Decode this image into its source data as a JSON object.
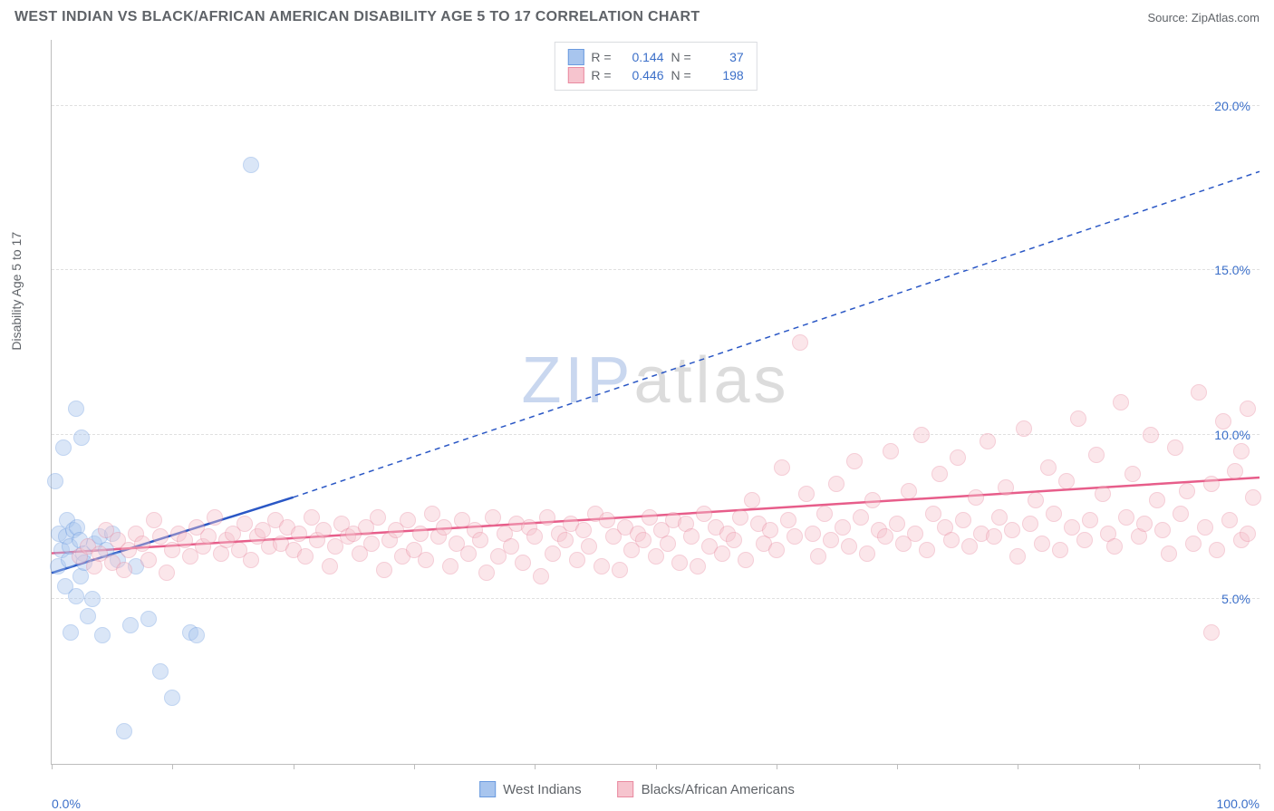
{
  "title": "WEST INDIAN VS BLACK/AFRICAN AMERICAN DISABILITY AGE 5 TO 17 CORRELATION CHART",
  "source_label": "Source: ",
  "source_name": "ZipAtlas.com",
  "ylabel": "Disability Age 5 to 17",
  "watermark_a": "ZIP",
  "watermark_b": "atlas",
  "chart": {
    "type": "scatter",
    "background_color": "#ffffff",
    "grid_color": "#e0e0e0",
    "axis_color": "#bdbdbd",
    "label_color": "#3b6fc9",
    "text_color": "#5f6368",
    "xlim": [
      0,
      100
    ],
    "ylim": [
      0,
      22
    ],
    "xticks": [
      0,
      10,
      20,
      30,
      40,
      50,
      60,
      70,
      80,
      90,
      100
    ],
    "xticklabels_shown": {
      "0": "0.0%",
      "100": "100.0%"
    },
    "yticks": [
      5,
      10,
      15,
      20
    ],
    "yticklabels": {
      "5": "5.0%",
      "10": "10.0%",
      "15": "15.0%",
      "20": "20.0%"
    },
    "marker_radius": 9,
    "marker_opacity": 0.42,
    "series": [
      {
        "name": "West Indians",
        "fill": "#a8c5ee",
        "stroke": "#6a9adf",
        "reg_color": "#2a57c5",
        "reg_solid": {
          "x1": 0,
          "y1": 5.8,
          "x2": 20,
          "y2": 8.1
        },
        "reg_dashed": {
          "x1": 20,
          "y1": 8.1,
          "x2": 100,
          "y2": 18.0
        },
        "R": "0.144",
        "N": "37",
        "points": [
          [
            0.3,
            8.6
          ],
          [
            0.5,
            6.0
          ],
          [
            0.6,
            7.0
          ],
          [
            0.8,
            6.5
          ],
          [
            1.0,
            9.6
          ],
          [
            1.1,
            5.4
          ],
          [
            1.2,
            6.9
          ],
          [
            1.3,
            7.4
          ],
          [
            1.4,
            6.2
          ],
          [
            1.5,
            6.6
          ],
          [
            1.6,
            4.0
          ],
          [
            1.8,
            7.1
          ],
          [
            2.0,
            10.8
          ],
          [
            2.0,
            5.1
          ],
          [
            2.1,
            7.2
          ],
          [
            2.3,
            6.8
          ],
          [
            2.4,
            5.7
          ],
          [
            2.5,
            9.9
          ],
          [
            2.6,
            6.4
          ],
          [
            2.7,
            6.1
          ],
          [
            3.0,
            4.5
          ],
          [
            3.4,
            5.0
          ],
          [
            3.5,
            6.7
          ],
          [
            4.0,
            6.9
          ],
          [
            4.2,
            3.9
          ],
          [
            4.5,
            6.5
          ],
          [
            5.0,
            7.0
          ],
          [
            5.5,
            6.2
          ],
          [
            6.0,
            1.0
          ],
          [
            6.5,
            4.2
          ],
          [
            7.0,
            6.0
          ],
          [
            8.0,
            4.4
          ],
          [
            9.0,
            2.8
          ],
          [
            10.0,
            2.0
          ],
          [
            11.5,
            4.0
          ],
          [
            12.0,
            3.9
          ],
          [
            16.5,
            18.2
          ]
        ]
      },
      {
        "name": "Blacks/African Americans",
        "fill": "#f6c4ce",
        "stroke": "#e98aa0",
        "reg_color": "#e75d8a",
        "reg_solid": {
          "x1": 0,
          "y1": 6.4,
          "x2": 100,
          "y2": 8.7
        },
        "R": "0.446",
        "N": "198",
        "points": [
          [
            2.3,
            6.3
          ],
          [
            3.0,
            6.6
          ],
          [
            3.5,
            6.0
          ],
          [
            4.0,
            6.4
          ],
          [
            4.5,
            7.1
          ],
          [
            5.0,
            6.1
          ],
          [
            5.5,
            6.8
          ],
          [
            6.0,
            5.9
          ],
          [
            6.4,
            6.5
          ],
          [
            7.0,
            7.0
          ],
          [
            7.5,
            6.7
          ],
          [
            8.0,
            6.2
          ],
          [
            8.5,
            7.4
          ],
          [
            9.0,
            6.9
          ],
          [
            9.5,
            5.8
          ],
          [
            10.0,
            6.5
          ],
          [
            10.5,
            7.0
          ],
          [
            11.0,
            6.8
          ],
          [
            11.5,
            6.3
          ],
          [
            12.0,
            7.2
          ],
          [
            12.5,
            6.6
          ],
          [
            13.0,
            6.9
          ],
          [
            13.5,
            7.5
          ],
          [
            14.0,
            6.4
          ],
          [
            14.5,
            6.8
          ],
          [
            15.0,
            7.0
          ],
          [
            15.5,
            6.5
          ],
          [
            16.0,
            7.3
          ],
          [
            16.5,
            6.2
          ],
          [
            17.0,
            6.9
          ],
          [
            17.5,
            7.1
          ],
          [
            18.0,
            6.6
          ],
          [
            18.5,
            7.4
          ],
          [
            19.0,
            6.7
          ],
          [
            19.5,
            7.2
          ],
          [
            20.0,
            6.5
          ],
          [
            20.5,
            7.0
          ],
          [
            21.0,
            6.3
          ],
          [
            21.5,
            7.5
          ],
          [
            22.0,
            6.8
          ],
          [
            22.5,
            7.1
          ],
          [
            23.0,
            6.0
          ],
          [
            23.5,
            6.6
          ],
          [
            24.0,
            7.3
          ],
          [
            24.5,
            6.9
          ],
          [
            25.0,
            7.0
          ],
          [
            25.5,
            6.4
          ],
          [
            26.0,
            7.2
          ],
          [
            26.5,
            6.7
          ],
          [
            27.0,
            7.5
          ],
          [
            27.5,
            5.9
          ],
          [
            28.0,
            6.8
          ],
          [
            28.5,
            7.1
          ],
          [
            29.0,
            6.3
          ],
          [
            29.5,
            7.4
          ],
          [
            30.0,
            6.5
          ],
          [
            30.5,
            7.0
          ],
          [
            31.0,
            6.2
          ],
          [
            31.5,
            7.6
          ],
          [
            32.0,
            6.9
          ],
          [
            32.5,
            7.2
          ],
          [
            33.0,
            6.0
          ],
          [
            33.5,
            6.7
          ],
          [
            34.0,
            7.4
          ],
          [
            34.5,
            6.4
          ],
          [
            35.0,
            7.1
          ],
          [
            35.5,
            6.8
          ],
          [
            36.0,
            5.8
          ],
          [
            36.5,
            7.5
          ],
          [
            37.0,
            6.3
          ],
          [
            37.5,
            7.0
          ],
          [
            38.0,
            6.6
          ],
          [
            38.5,
            7.3
          ],
          [
            39.0,
            6.1
          ],
          [
            39.5,
            7.2
          ],
          [
            40.0,
            6.9
          ],
          [
            40.5,
            5.7
          ],
          [
            41.0,
            7.5
          ],
          [
            41.5,
            6.4
          ],
          [
            42.0,
            7.0
          ],
          [
            42.5,
            6.8
          ],
          [
            43.0,
            7.3
          ],
          [
            43.5,
            6.2
          ],
          [
            44.0,
            7.1
          ],
          [
            44.5,
            6.6
          ],
          [
            45.0,
            7.6
          ],
          [
            45.5,
            6.0
          ],
          [
            46.0,
            7.4
          ],
          [
            46.5,
            6.9
          ],
          [
            47.0,
            5.9
          ],
          [
            47.5,
            7.2
          ],
          [
            48.0,
            6.5
          ],
          [
            48.5,
            7.0
          ],
          [
            49.0,
            6.8
          ],
          [
            49.5,
            7.5
          ],
          [
            50.0,
            6.3
          ],
          [
            50.5,
            7.1
          ],
          [
            51.0,
            6.7
          ],
          [
            51.5,
            7.4
          ],
          [
            52.0,
            6.1
          ],
          [
            52.5,
            7.3
          ],
          [
            53.0,
            6.9
          ],
          [
            53.5,
            6.0
          ],
          [
            54.0,
            7.6
          ],
          [
            54.5,
            6.6
          ],
          [
            55.0,
            7.2
          ],
          [
            55.5,
            6.4
          ],
          [
            56.0,
            7.0
          ],
          [
            56.5,
            6.8
          ],
          [
            57.0,
            7.5
          ],
          [
            57.5,
            6.2
          ],
          [
            58.0,
            8.0
          ],
          [
            58.5,
            7.3
          ],
          [
            59.0,
            6.7
          ],
          [
            59.5,
            7.1
          ],
          [
            60.0,
            6.5
          ],
          [
            60.5,
            9.0
          ],
          [
            61.0,
            7.4
          ],
          [
            61.5,
            6.9
          ],
          [
            62.0,
            12.8
          ],
          [
            62.5,
            8.2
          ],
          [
            63.0,
            7.0
          ],
          [
            63.5,
            6.3
          ],
          [
            64.0,
            7.6
          ],
          [
            64.5,
            6.8
          ],
          [
            65.0,
            8.5
          ],
          [
            65.5,
            7.2
          ],
          [
            66.0,
            6.6
          ],
          [
            66.5,
            9.2
          ],
          [
            67.0,
            7.5
          ],
          [
            67.5,
            6.4
          ],
          [
            68.0,
            8.0
          ],
          [
            68.5,
            7.1
          ],
          [
            69.0,
            6.9
          ],
          [
            69.5,
            9.5
          ],
          [
            70.0,
            7.3
          ],
          [
            70.5,
            6.7
          ],
          [
            71.0,
            8.3
          ],
          [
            71.5,
            7.0
          ],
          [
            72.0,
            10.0
          ],
          [
            72.5,
            6.5
          ],
          [
            73.0,
            7.6
          ],
          [
            73.5,
            8.8
          ],
          [
            74.0,
            7.2
          ],
          [
            74.5,
            6.8
          ],
          [
            75.0,
            9.3
          ],
          [
            75.5,
            7.4
          ],
          [
            76.0,
            6.6
          ],
          [
            76.5,
            8.1
          ],
          [
            77.0,
            7.0
          ],
          [
            77.5,
            9.8
          ],
          [
            78.0,
            6.9
          ],
          [
            78.5,
            7.5
          ],
          [
            79.0,
            8.4
          ],
          [
            79.5,
            7.1
          ],
          [
            80.0,
            6.3
          ],
          [
            80.5,
            10.2
          ],
          [
            81.0,
            7.3
          ],
          [
            81.5,
            8.0
          ],
          [
            82.0,
            6.7
          ],
          [
            82.5,
            9.0
          ],
          [
            83.0,
            7.6
          ],
          [
            83.5,
            6.5
          ],
          [
            84.0,
            8.6
          ],
          [
            84.5,
            7.2
          ],
          [
            85.0,
            10.5
          ],
          [
            85.5,
            6.8
          ],
          [
            86.0,
            7.4
          ],
          [
            86.5,
            9.4
          ],
          [
            87.0,
            8.2
          ],
          [
            87.5,
            7.0
          ],
          [
            88.0,
            6.6
          ],
          [
            88.5,
            11.0
          ],
          [
            89.0,
            7.5
          ],
          [
            89.5,
            8.8
          ],
          [
            90.0,
            6.9
          ],
          [
            90.5,
            7.3
          ],
          [
            91.0,
            10.0
          ],
          [
            91.5,
            8.0
          ],
          [
            92.0,
            7.1
          ],
          [
            92.5,
            6.4
          ],
          [
            93.0,
            9.6
          ],
          [
            93.5,
            7.6
          ],
          [
            94.0,
            8.3
          ],
          [
            94.5,
            6.7
          ],
          [
            95.0,
            11.3
          ],
          [
            95.5,
            7.2
          ],
          [
            96.0,
            8.5
          ],
          [
            96.5,
            6.5
          ],
          [
            97.0,
            10.4
          ],
          [
            97.5,
            7.4
          ],
          [
            98.0,
            8.9
          ],
          [
            98.5,
            6.8
          ],
          [
            99.0,
            10.8
          ],
          [
            99.5,
            8.1
          ],
          [
            96.0,
            4.0
          ],
          [
            99.0,
            7.0
          ],
          [
            98.5,
            9.5
          ]
        ]
      }
    ]
  },
  "legend_top": {
    "R_label": "R =",
    "N_label": "N ="
  },
  "legend_bottom": [
    {
      "label": "West Indians"
    },
    {
      "label": "Blacks/African Americans"
    }
  ]
}
